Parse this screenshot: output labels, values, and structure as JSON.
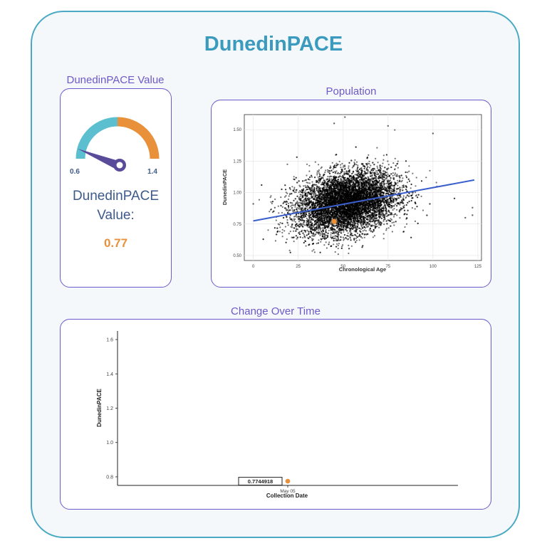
{
  "page": {
    "title": "DunedinPACE"
  },
  "gauge_panel": {
    "section_label": "DunedinPACE Value",
    "min_label": "0.6",
    "max_label": "1.4",
    "value_label_line1": "DunedinPACE",
    "value_label_line2": "Value:",
    "value": "0.77",
    "colors": {
      "low_arc": "#5bbfd0",
      "high_arc": "#e8913a",
      "needle": "#5a4a9a",
      "value": "#e8913a"
    }
  },
  "population_panel": {
    "section_label": "Population"
  },
  "change_panel": {
    "section_label": "Change Over Time"
  },
  "chart_data": [
    {
      "type": "scatter",
      "xlabel": "Chronological Age",
      "ylabel": "DunedinPACE",
      "xlim": [
        -5,
        127
      ],
      "ylim": [
        0.46,
        1.62
      ],
      "x_ticks": [
        0,
        25,
        50,
        75,
        100,
        125
      ],
      "x_tick_labels": [
        "0",
        "25",
        "50",
        "75",
        "100",
        "125"
      ],
      "y_ticks": [
        0.5,
        0.75,
        1.0,
        1.25,
        1.5
      ],
      "y_tick_labels": [
        "0.50",
        "0.75",
        "1.00",
        "1.25",
        "1.50"
      ],
      "grid": true,
      "population_cloud": {
        "n": 9000,
        "center_age": 52,
        "age_sd": 14,
        "center_pace": 0.92,
        "pace_sd": 0.12
      },
      "outliers": [
        {
          "x": 45,
          "y": 1.55
        },
        {
          "x": 51,
          "y": 1.6
        },
        {
          "x": 75,
          "y": 1.53
        },
        {
          "x": 100,
          "y": 1.47
        },
        {
          "x": 122,
          "y": 0.88
        },
        {
          "x": 122,
          "y": 0.82
        },
        {
          "x": 0,
          "y": 0.91
        },
        {
          "x": 12,
          "y": 0.88
        },
        {
          "x": 118,
          "y": 0.8
        }
      ],
      "trend_line": {
        "x": [
          0,
          123
        ],
        "y": [
          0.775,
          1.1
        ],
        "color": "#3a5fcd"
      },
      "highlight": {
        "x": 45,
        "y": 0.77,
        "color": "#e8913a"
      }
    },
    {
      "type": "scatter",
      "xlabel": "Collection Date",
      "ylabel": "DunedinPACE",
      "ylim": [
        0.75,
        1.65
      ],
      "y_ticks": [
        0.8,
        1.0,
        1.2,
        1.4,
        1.6
      ],
      "y_tick_labels": [
        "0.8",
        "1.0",
        "1.2",
        "1.4",
        "1.6"
      ],
      "x_tick_labels": [
        "May 05"
      ],
      "grid": false,
      "points": [
        {
          "x": "May 05",
          "y": 0.7744918,
          "label": "0.7744918",
          "color": "#e8913a"
        }
      ]
    }
  ]
}
